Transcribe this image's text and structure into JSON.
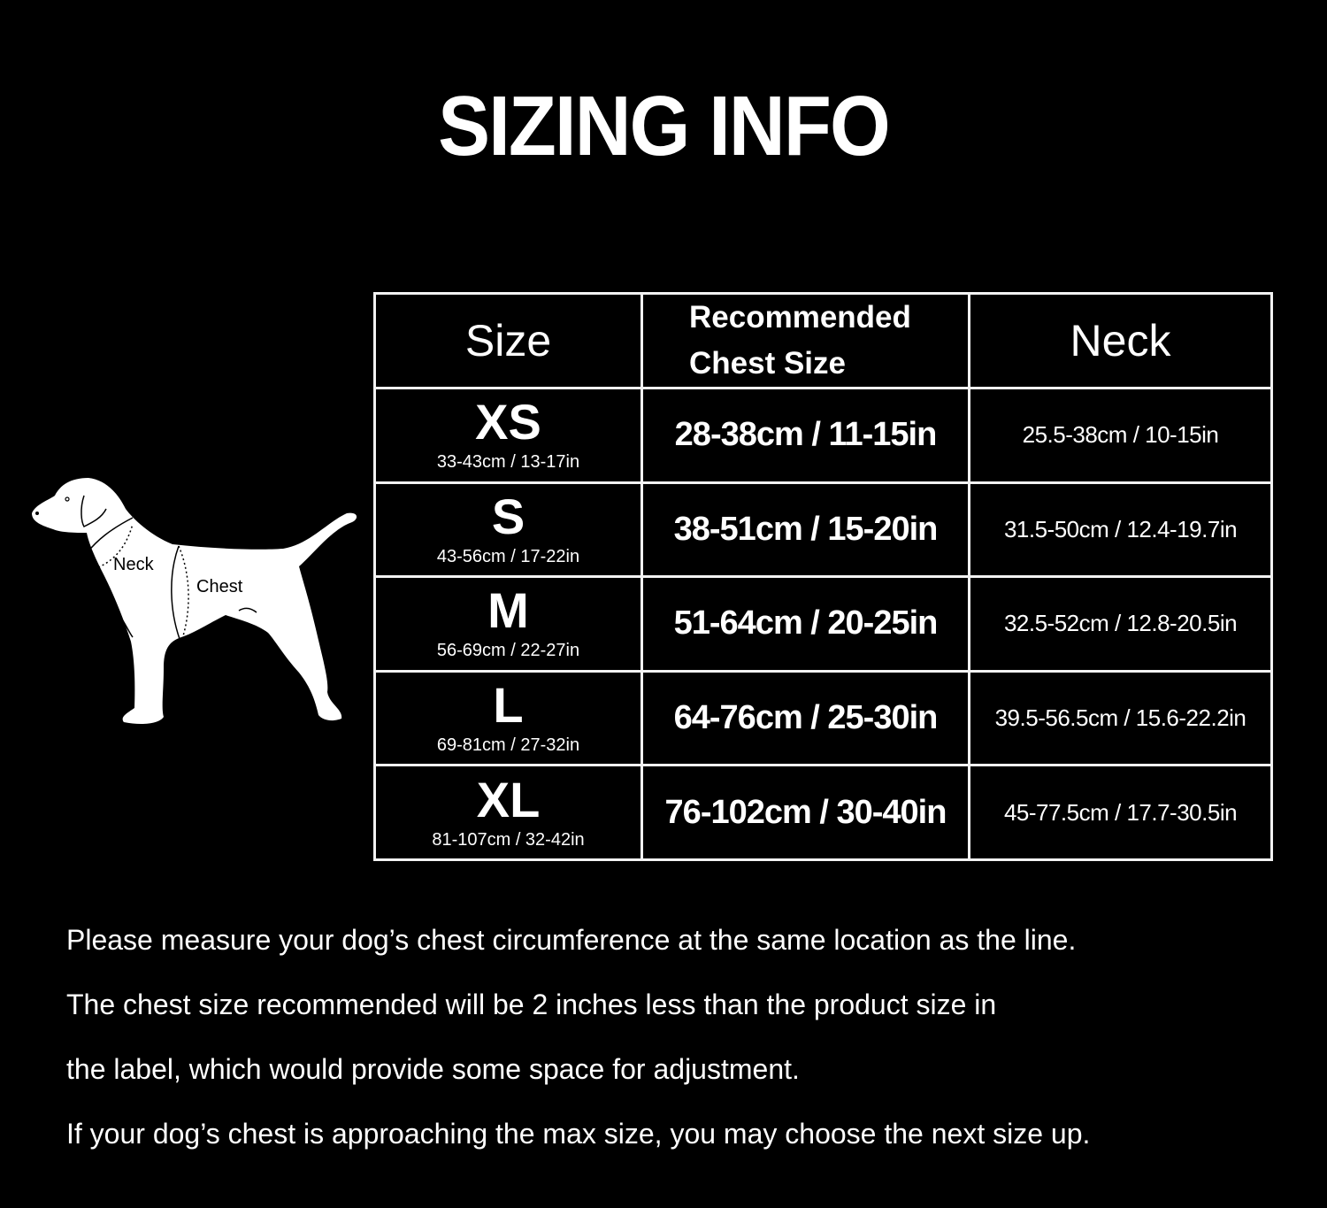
{
  "title": "SIZING INFO",
  "diagram": {
    "neck_label": "Neck",
    "chest_label": "Chest",
    "icon": "dog-silhouette"
  },
  "table": {
    "headers": {
      "size": "Size",
      "chest_line1": "Recommended",
      "chest_line2": "Chest Size",
      "neck": "Neck"
    },
    "rows": [
      {
        "size": "XS",
        "product": "33-43cm / 13-17in",
        "chest": "28-38cm / 11-15in",
        "neck": "25.5-38cm / 10-15in"
      },
      {
        "size": "S",
        "product": "43-56cm / 17-22in",
        "chest": "38-51cm / 15-20in",
        "neck": "31.5-50cm / 12.4-19.7in"
      },
      {
        "size": "M",
        "product": "56-69cm / 22-27in",
        "chest": "51-64cm / 20-25in",
        "neck": "32.5-52cm / 12.8-20.5in"
      },
      {
        "size": "L",
        "product": "69-81cm / 27-32in",
        "chest": "64-76cm / 25-30in",
        "neck": "39.5-56.5cm / 15.6-22.2in"
      },
      {
        "size": "XL",
        "product": "81-107cm / 32-42in",
        "chest": "76-102cm / 30-40in",
        "neck": "45-77.5cm / 17.7-30.5in"
      }
    ]
  },
  "notes": [
    "Please measure your dog’s chest circumference at the same location as the line.",
    "The chest size recommended will be 2 inches less than the product size in",
    "the label, which would provide some space for adjustment.",
    "If your dog’s chest is approaching the max size, you may choose the next size up."
  ]
}
